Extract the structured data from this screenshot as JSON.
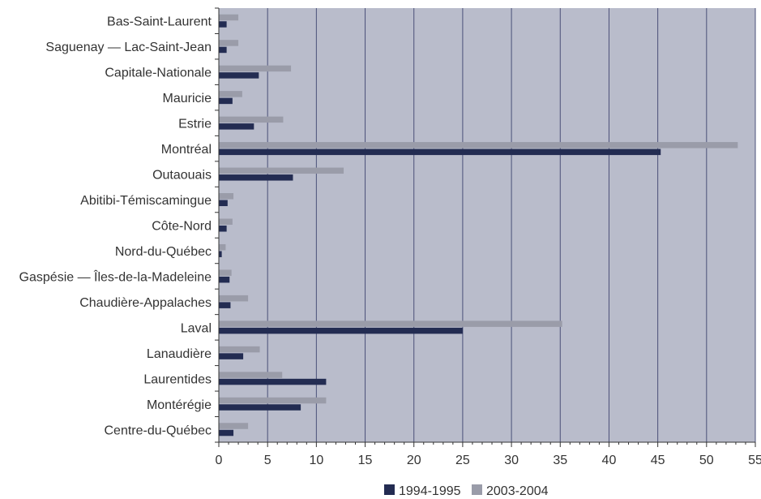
{
  "chart_data": {
    "type": "bar",
    "orientation": "horizontal",
    "title": "",
    "xlabel": "",
    "ylabel": "",
    "xlim": [
      0,
      55
    ],
    "x_ticks": [
      "0",
      "5",
      "10",
      "15",
      "20",
      "25",
      "30",
      "35",
      "40",
      "45",
      "50",
      "55"
    ],
    "grid": "vertical",
    "legend_position": "bottom",
    "categories": [
      "Bas-Saint-Laurent",
      "Saguenay — Lac-Saint-Jean",
      "Capitale-Nationale",
      "Mauricie",
      "Estrie",
      "Montréal",
      "Outaouais",
      "Abitibi-Témiscamingue",
      "Côte-Nord",
      "Nord-du-Québec",
      "Gaspésie — Îles-de-la-Madeleine",
      "Chaudière-Appalaches",
      "Laval",
      "Lanaudière",
      "Laurentides",
      "Montérégie",
      "Centre-du-Québec"
    ],
    "series": [
      {
        "name": "1994-1995",
        "color": "#232c52",
        "values": [
          0.8,
          0.8,
          4.1,
          1.4,
          3.6,
          45.3,
          7.6,
          0.9,
          0.8,
          0.3,
          1.1,
          1.2,
          25.0,
          2.5,
          11.0,
          8.4,
          1.5
        ]
      },
      {
        "name": "2003-2004",
        "color": "#9a9ca9",
        "values": [
          2.0,
          2.0,
          7.4,
          2.4,
          6.6,
          53.2,
          12.8,
          1.5,
          1.4,
          0.7,
          1.3,
          3.0,
          35.2,
          4.2,
          6.5,
          11.0,
          3.0
        ]
      }
    ],
    "colors": {
      "plot_background": "#b9bccb",
      "gridline": "#4a5078"
    }
  }
}
